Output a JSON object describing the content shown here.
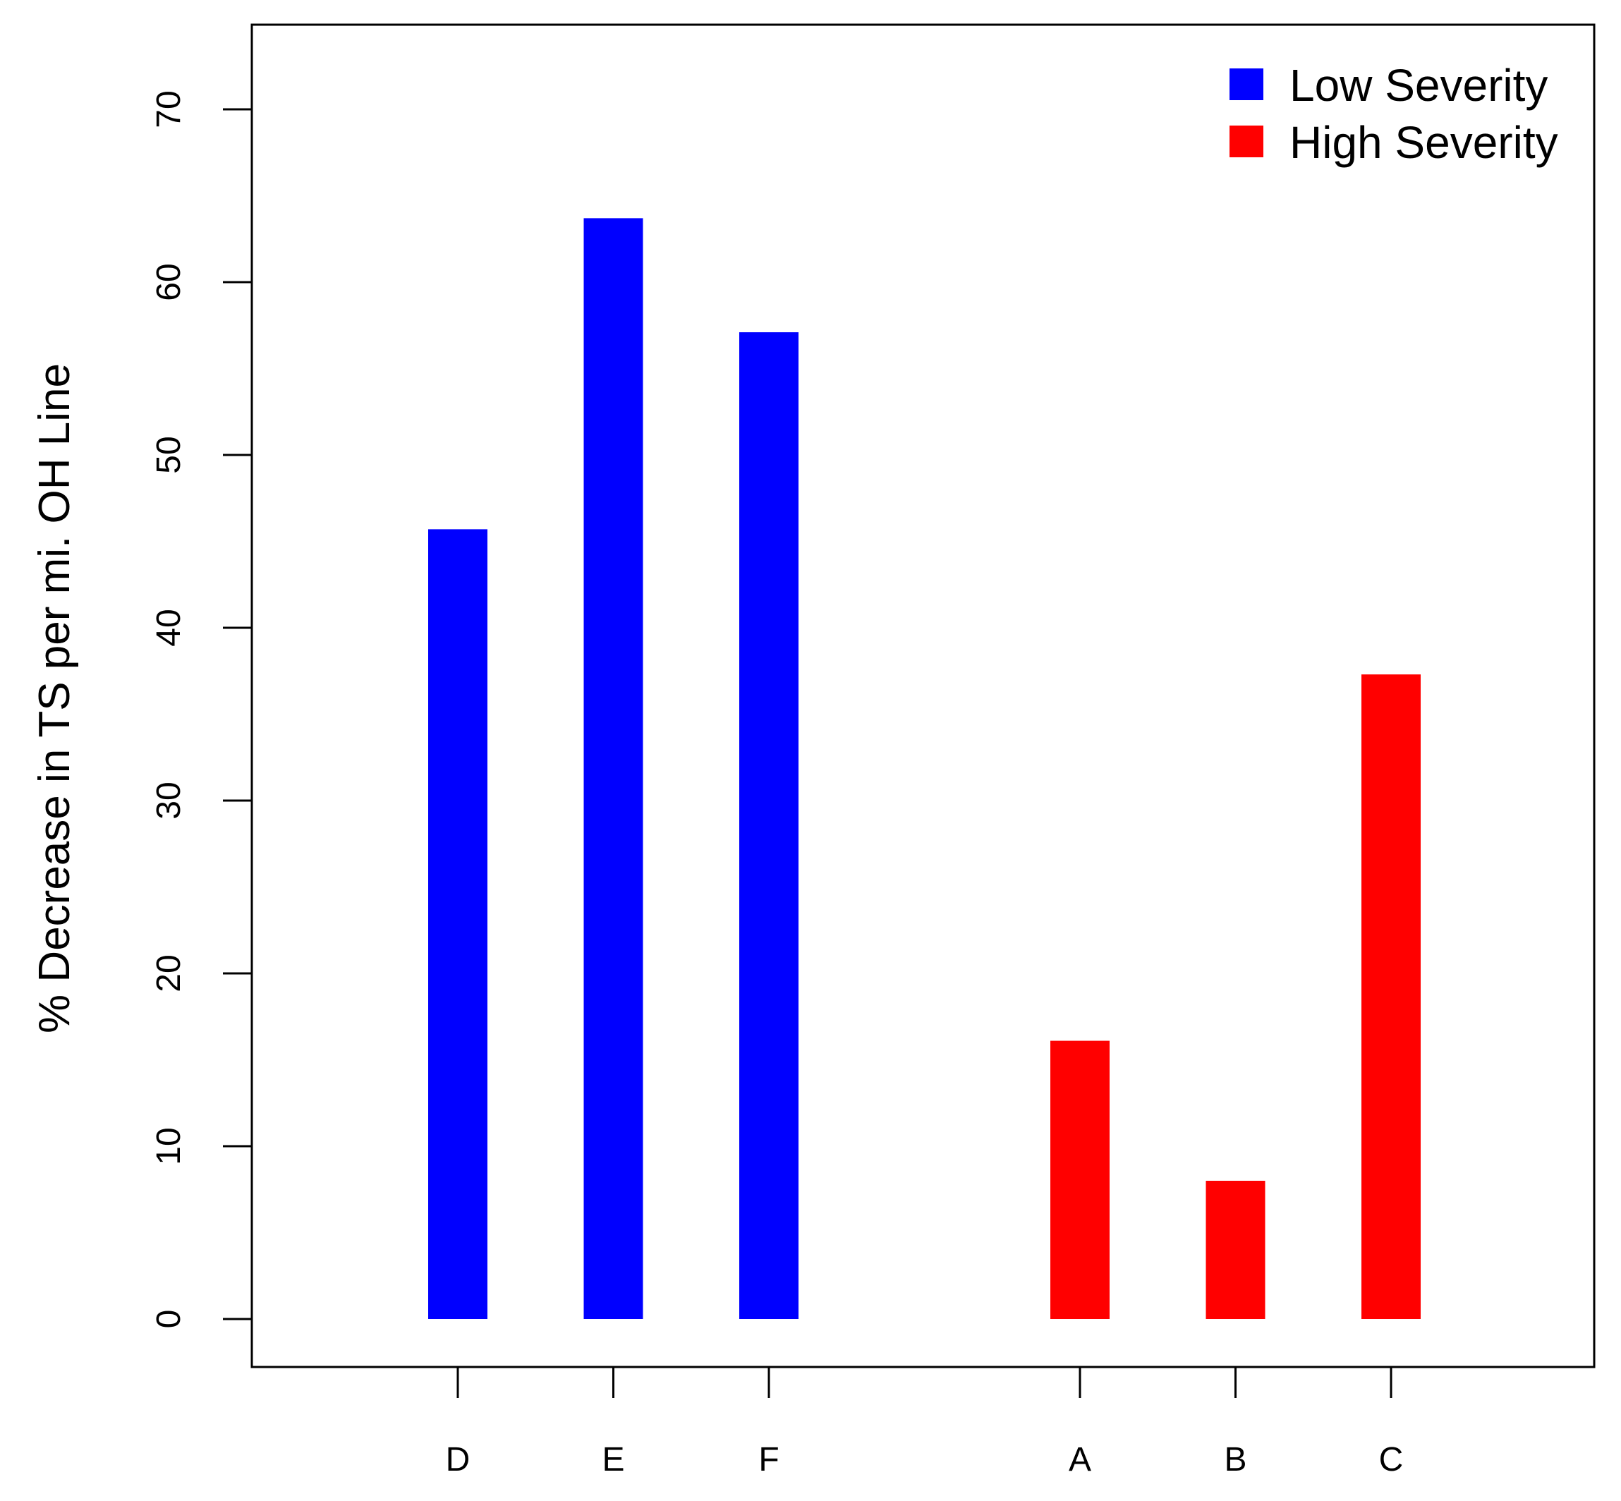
{
  "chart_data": {
    "type": "bar",
    "title": "",
    "xlabel": "",
    "ylabel": "% Decrease in TS per mi. OH Line",
    "ylim": [
      0,
      75
    ],
    "yticks": [
      0,
      10,
      20,
      30,
      40,
      50,
      60,
      70
    ],
    "xlim": [
      0.5,
      9.5
    ],
    "categories": [
      "D",
      "E",
      "F",
      "A",
      "B",
      "C"
    ],
    "x_positions": [
      2,
      3,
      4,
      6,
      7,
      8
    ],
    "values": [
      45.7,
      63.7,
      57.1,
      16.1,
      8.0,
      37.3
    ],
    "groups": [
      "Low Severity",
      "Low Severity",
      "Low Severity",
      "High Severity",
      "High Severity",
      "High Severity"
    ],
    "legend": {
      "position": "top-right",
      "entries": [
        {
          "label": "Low Severity",
          "color": "#0000ff"
        },
        {
          "label": "High Severity",
          "color": "#ff0000"
        }
      ]
    },
    "grid": false
  }
}
